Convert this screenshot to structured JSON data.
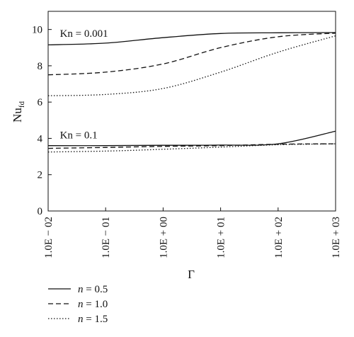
{
  "chart_data": {
    "type": "line",
    "xlabel": "Γ",
    "ylabel": {
      "main": "Nu",
      "subscript": "fd"
    },
    "x_scale": "log",
    "x": [
      0.01,
      0.1,
      1,
      10,
      100,
      1000
    ],
    "x_tick_labels": [
      "1.0E − 02",
      "1.0E − 01",
      "1.0E + 00",
      "1.0E + 01",
      "1.0E + 02",
      "1.0E + 03"
    ],
    "xlim": [
      0.01,
      1000
    ],
    "ylim": [
      0,
      11
    ],
    "y_ticks": [
      0,
      2,
      4,
      6,
      8,
      10
    ],
    "grid": false,
    "annotations": [
      {
        "text": "Kn = 0.001",
        "x": 0.016,
        "y": 9.8
      },
      {
        "text": "Kn = 0.1",
        "x": 0.016,
        "y": 4.2
      }
    ],
    "legend": {
      "placement": "bottom-left",
      "entries": [
        {
          "label": "n = 0.5",
          "style": "solid"
        },
        {
          "label": "n = 1.0",
          "style": "dashed"
        },
        {
          "label": "n = 1.5",
          "style": "dotted"
        }
      ]
    },
    "series": [
      {
        "group": "Kn = 0.001",
        "style": "solid",
        "values": [
          9.15,
          9.25,
          9.55,
          9.78,
          9.82,
          9.83
        ]
      },
      {
        "group": "Kn = 0.001",
        "style": "dashed",
        "values": [
          7.5,
          7.65,
          8.1,
          9.0,
          9.6,
          9.8
        ]
      },
      {
        "group": "Kn = 0.001",
        "style": "dotted",
        "values": [
          6.35,
          6.42,
          6.75,
          7.65,
          8.75,
          9.65
        ]
      },
      {
        "group": "Kn = 0.1",
        "style": "solid",
        "values": [
          3.6,
          3.6,
          3.62,
          3.63,
          3.7,
          4.4
        ]
      },
      {
        "group": "Kn = 0.1",
        "style": "dashed",
        "values": [
          3.45,
          3.5,
          3.56,
          3.6,
          3.68,
          3.7
        ]
      },
      {
        "group": "Kn = 0.1",
        "style": "dotted",
        "values": [
          3.25,
          3.3,
          3.4,
          3.52,
          3.65,
          3.7
        ]
      }
    ]
  }
}
